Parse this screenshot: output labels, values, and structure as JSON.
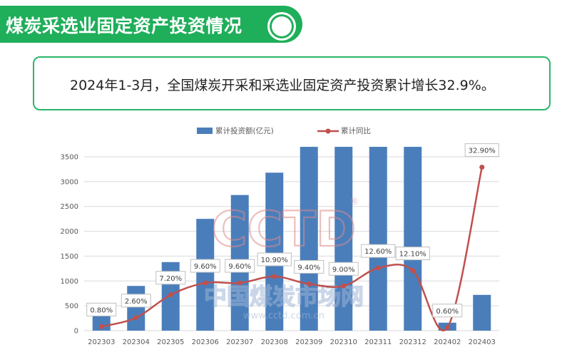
{
  "header": {
    "title": "煤炭采选业固定资产投资情况"
  },
  "summary": {
    "text": "2024年1-3月，全国煤炭开采和采选业固定资产投资累计增长32.9%。"
  },
  "watermark": {
    "logo": "CCTD",
    "registered": "®",
    "cn_name": "中国煤炭市场网",
    "url": "www.cctd.com.cn"
  },
  "colors": {
    "bar": "#4a7ebb",
    "line": "#c0504d",
    "accent": "#1fae5a"
  },
  "chart_data": {
    "type": "bar+line",
    "categories": [
      "202303",
      "202304",
      "202305",
      "202306",
      "202307",
      "202308",
      "202309",
      "202310",
      "202311",
      "202312",
      "202402",
      "202403"
    ],
    "series": [
      {
        "name": "累计投资额(亿元)",
        "type": "bar",
        "axis": "left",
        "values": [
          530,
          900,
          1380,
          2250,
          2730,
          3180,
          3700,
          3700,
          3700,
          3700,
          160,
          720
        ]
      },
      {
        "name": "累计同比",
        "type": "line",
        "axis": "right",
        "unit": "%",
        "values": [
          0.8,
          2.6,
          7.2,
          9.6,
          9.6,
          10.9,
          9.4,
          9.0,
          12.6,
          12.1,
          0.6,
          32.9
        ],
        "labels": [
          "0.80%",
          "2.60%",
          "7.20%",
          "9.60%",
          "9.60%",
          "10.90%",
          "9.40%",
          "9.00%",
          "12.60%",
          "12.10%",
          "0.60%",
          "32.90%"
        ]
      }
    ],
    "yaxis_left": {
      "min": 0,
      "max": 3500,
      "ticks": [
        "0",
        "500",
        "1000",
        "1500",
        "2000",
        "2500",
        "3000",
        "3500"
      ]
    },
    "yaxis_right": {
      "min": 0,
      "max": 35
    },
    "legend_position": "top"
  }
}
